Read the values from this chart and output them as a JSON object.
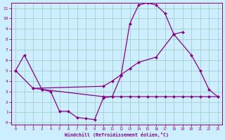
{
  "xlabel": "Windchill (Refroidissement éolien,°C)",
  "bg_color": "#cceeff",
  "line_color": "#880088",
  "grid_color": "#99ccbb",
  "xlim": [
    -0.5,
    23.5
  ],
  "ylim": [
    -0.2,
    11.5
  ],
  "xticks": [
    0,
    1,
    2,
    3,
    4,
    5,
    6,
    7,
    8,
    9,
    10,
    11,
    12,
    13,
    14,
    15,
    16,
    17,
    18,
    19,
    20,
    21,
    22,
    23
  ],
  "yticks": [
    0,
    1,
    2,
    3,
    4,
    5,
    6,
    7,
    8,
    9,
    10,
    11
  ],
  "line1_x": [
    0,
    1,
    3,
    4,
    5,
    6,
    7,
    8,
    9,
    10,
    11,
    12,
    13,
    14,
    15,
    16,
    17,
    18,
    20,
    21,
    22,
    23
  ],
  "line1_y": [
    5.0,
    6.5,
    3.2,
    3.0,
    1.1,
    1.1,
    0.5,
    0.4,
    0.3,
    2.4,
    2.5,
    4.5,
    9.5,
    11.3,
    11.5,
    11.3,
    10.5,
    8.5,
    6.5,
    5.0,
    3.2,
    2.5
  ],
  "line2_x": [
    0,
    2,
    10,
    11,
    12,
    13,
    14,
    16,
    18,
    19
  ],
  "line2_y": [
    5.0,
    3.3,
    3.5,
    4.0,
    4.6,
    5.2,
    5.8,
    6.3,
    8.5,
    8.7
  ],
  "line3_x": [
    2,
    3,
    10,
    11,
    12,
    13,
    14,
    15,
    16,
    17,
    18,
    19,
    20,
    21,
    22,
    23
  ],
  "line3_y": [
    3.3,
    3.2,
    2.5,
    2.5,
    2.5,
    2.5,
    2.5,
    2.5,
    2.5,
    2.5,
    2.5,
    2.5,
    2.5,
    2.5,
    2.5,
    2.5
  ]
}
